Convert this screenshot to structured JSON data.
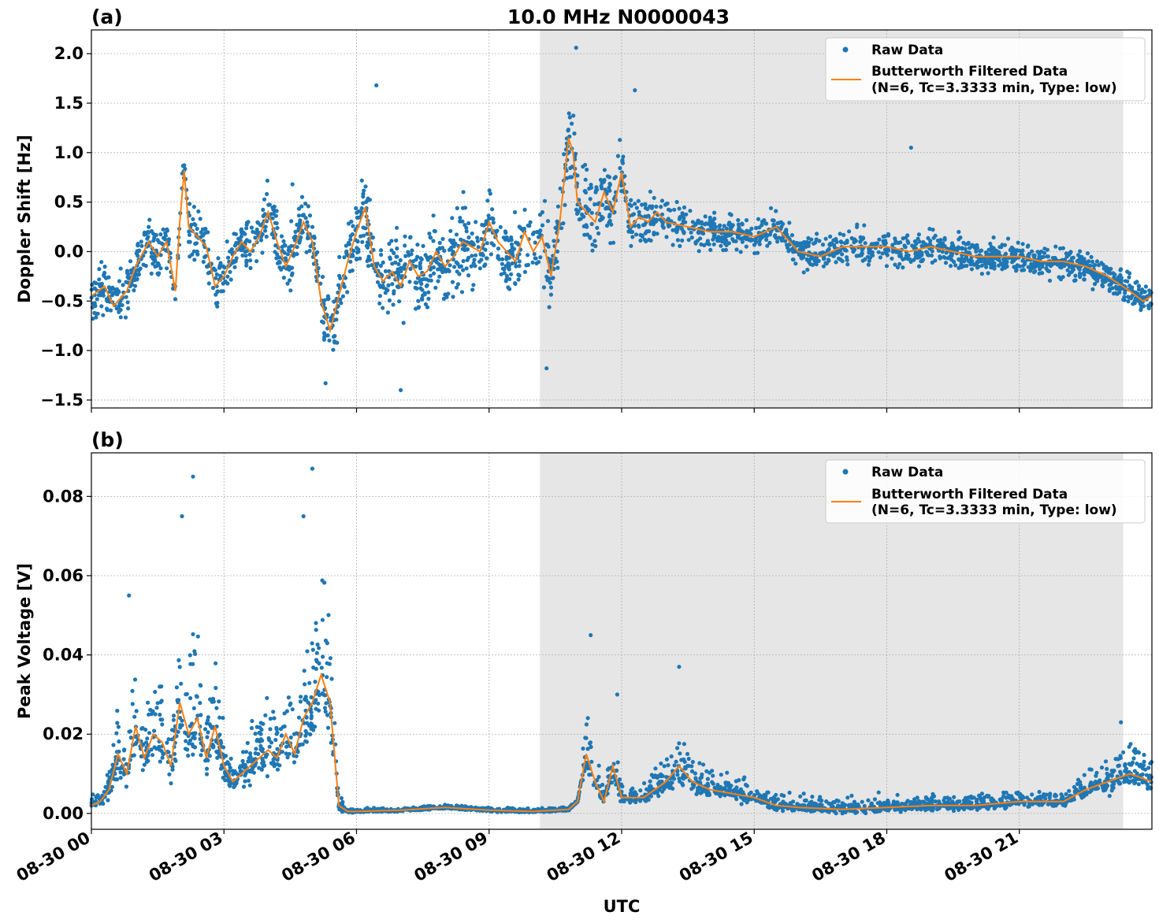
{
  "title": "10.0 MHz N0000043",
  "xlabel": "UTC",
  "x_ticks": [
    "08-30 00",
    "08-30 03",
    "08-30 06",
    "08-30 09",
    "08-30 12",
    "08-30 15",
    "08-30 18",
    "08-30 21"
  ],
  "colors": {
    "raw": "#1f77b4",
    "filtered": "#ff7f0e",
    "shade": "#e6e6e6",
    "grid": "#b0b0b0"
  },
  "chart_data": [
    {
      "type": "scatter",
      "panel_label": "(a)",
      "ylabel": "Doppler Shift [Hz]",
      "xlim_hours": [
        0,
        24
      ],
      "ylim": [
        -1.58,
        2.24
      ],
      "y_ticks": [
        "−1.5",
        "−1.0",
        "−0.5",
        "0.0",
        "0.5",
        "1.0",
        "1.5",
        "2.0"
      ],
      "y_tick_values": [
        -1.5,
        -1.0,
        -0.5,
        0.0,
        0.5,
        1.0,
        1.5,
        2.0
      ],
      "shaded_interval_hours": [
        10.15,
        23.35
      ],
      "grid": true,
      "legend": {
        "placement": "top-right",
        "raw_label": "Raw Data",
        "filtered_line1": "Butterworth Filtered Data",
        "filtered_line2": "(N=6, Tc=3.3333 min, Type: low)"
      },
      "series": [
        {
          "name": "Butterworth Filtered Data",
          "kind": "line",
          "x": [
            0,
            0.3,
            0.5,
            0.8,
            1.0,
            1.3,
            1.5,
            1.7,
            1.9,
            2.0,
            2.1,
            2.2,
            2.4,
            2.6,
            2.8,
            3.0,
            3.2,
            3.4,
            3.6,
            3.8,
            4.0,
            4.2,
            4.4,
            4.6,
            4.8,
            5.0,
            5.2,
            5.4,
            5.6,
            5.8,
            6.0,
            6.2,
            6.4,
            6.6,
            6.8,
            7.0,
            7.2,
            7.4,
            7.6,
            7.8,
            8.0,
            8.2,
            8.4,
            8.6,
            8.8,
            9.0,
            9.2,
            9.4,
            9.6,
            9.8,
            10.0,
            10.2,
            10.4,
            10.6,
            10.8,
            10.9,
            11.0,
            11.2,
            11.4,
            11.6,
            11.8,
            12.0,
            12.2,
            12.4,
            12.6,
            12.8,
            13.0,
            13.5,
            14.0,
            14.5,
            15.0,
            15.5,
            16.0,
            16.5,
            17.0,
            17.5,
            18.0,
            18.5,
            19.0,
            19.5,
            20.0,
            20.5,
            21.0,
            21.5,
            22.0,
            22.5,
            23.0,
            23.5,
            23.8,
            24.0
          ],
          "y": [
            -0.45,
            -0.35,
            -0.55,
            -0.4,
            -0.15,
            0.1,
            -0.05,
            0.1,
            -0.4,
            0.3,
            0.82,
            0.25,
            0.15,
            0.05,
            -0.35,
            -0.25,
            -0.05,
            0.1,
            0.0,
            0.15,
            0.4,
            0.1,
            -0.15,
            0.05,
            0.3,
            0.1,
            -0.5,
            -0.8,
            -0.45,
            -0.1,
            0.2,
            0.45,
            -0.15,
            -0.3,
            -0.2,
            -0.35,
            -0.1,
            -0.25,
            -0.2,
            0.0,
            -0.15,
            -0.05,
            0.1,
            0.05,
            0.0,
            0.3,
            0.1,
            0.0,
            -0.1,
            0.2,
            0.0,
            0.15,
            -0.25,
            0.3,
            1.15,
            1.0,
            0.5,
            0.4,
            0.3,
            0.6,
            0.4,
            0.8,
            0.25,
            0.35,
            0.3,
            0.4,
            0.3,
            0.25,
            0.2,
            0.2,
            0.15,
            0.25,
            0.0,
            -0.05,
            0.05,
            0.05,
            0.05,
            0.0,
            0.05,
            0.0,
            -0.05,
            -0.05,
            -0.05,
            -0.1,
            -0.1,
            -0.15,
            -0.25,
            -0.4,
            -0.5,
            -0.45
          ]
        },
        {
          "name": "Raw Data",
          "kind": "scatter",
          "x_hours_range": [
            0,
            24
          ],
          "spread_hz_by_x": [
            [
              0,
              0.3
            ],
            [
              5,
              0.35
            ],
            [
              6.5,
              0.45
            ],
            [
              9,
              0.5
            ],
            [
              11,
              0.5
            ],
            [
              12.5,
              0.3
            ],
            [
              15,
              0.2
            ],
            [
              17,
              0.2
            ],
            [
              24,
              0.2
            ]
          ],
          "outliers": [
            [
              10.97,
              2.06
            ],
            [
              10.3,
              -1.18
            ],
            [
              6.45,
              1.68
            ],
            [
              4.55,
              0.68
            ],
            [
              18.55,
              1.05
            ],
            [
              12.3,
              1.63
            ],
            [
              7.0,
              -1.4
            ],
            [
              5.3,
              -1.33
            ]
          ]
        }
      ]
    },
    {
      "type": "scatter",
      "panel_label": "(b)",
      "ylabel": "Peak Voltage [V]",
      "xlim_hours": [
        0,
        24
      ],
      "ylim": [
        -0.004,
        0.091
      ],
      "y_ticks": [
        "0.00",
        "0.02",
        "0.04",
        "0.06",
        "0.08"
      ],
      "y_tick_values": [
        0.0,
        0.02,
        0.04,
        0.06,
        0.08
      ],
      "shaded_interval_hours": [
        10.15,
        23.35
      ],
      "grid": true,
      "legend": {
        "placement": "top-right",
        "raw_label": "Raw Data",
        "filtered_line1": "Butterworth Filtered Data",
        "filtered_line2": "(N=6, Tc=3.3333 min, Type: low)"
      },
      "series": [
        {
          "name": "Butterworth Filtered Data",
          "kind": "line",
          "x": [
            0,
            0.2,
            0.4,
            0.6,
            0.8,
            1.0,
            1.2,
            1.4,
            1.6,
            1.8,
            2.0,
            2.2,
            2.4,
            2.6,
            2.8,
            3.0,
            3.2,
            3.4,
            3.6,
            3.8,
            4.0,
            4.2,
            4.4,
            4.6,
            4.8,
            5.0,
            5.2,
            5.4,
            5.6,
            5.8,
            6.0,
            7.0,
            8.0,
            9.0,
            10.0,
            10.8,
            11.0,
            11.2,
            11.4,
            11.6,
            11.8,
            12.0,
            12.5,
            13.0,
            13.3,
            13.6,
            14.0,
            14.5,
            15.0,
            15.5,
            16.0,
            17.0,
            18.0,
            19.0,
            20.0,
            21.0,
            22.0,
            22.5,
            23.0,
            23.5,
            24.0
          ],
          "y": [
            0.002,
            0.003,
            0.006,
            0.015,
            0.01,
            0.022,
            0.014,
            0.02,
            0.018,
            0.012,
            0.028,
            0.02,
            0.024,
            0.014,
            0.022,
            0.012,
            0.008,
            0.01,
            0.012,
            0.014,
            0.016,
            0.014,
            0.02,
            0.015,
            0.024,
            0.028,
            0.035,
            0.028,
            0.002,
            0.0005,
            0.0005,
            0.0008,
            0.0015,
            0.0008,
            0.0005,
            0.001,
            0.003,
            0.015,
            0.008,
            0.003,
            0.012,
            0.004,
            0.004,
            0.008,
            0.012,
            0.008,
            0.006,
            0.005,
            0.004,
            0.002,
            0.0015,
            0.001,
            0.0015,
            0.002,
            0.002,
            0.003,
            0.003,
            0.006,
            0.008,
            0.01,
            0.008
          ]
        },
        {
          "name": "Raw Data",
          "kind": "scatter",
          "x_hours_range": [
            0,
            24
          ],
          "spikes": [
            [
              2.3,
              0.085
            ],
            [
              5.0,
              0.087
            ],
            [
              2.05,
              0.075
            ],
            [
              4.8,
              0.075
            ],
            [
              11.3,
              0.045
            ],
            [
              13.3,
              0.037
            ],
            [
              11.9,
              0.03
            ],
            [
              0.85,
              0.055
            ],
            [
              23.3,
              0.023
            ]
          ]
        }
      ]
    }
  ]
}
